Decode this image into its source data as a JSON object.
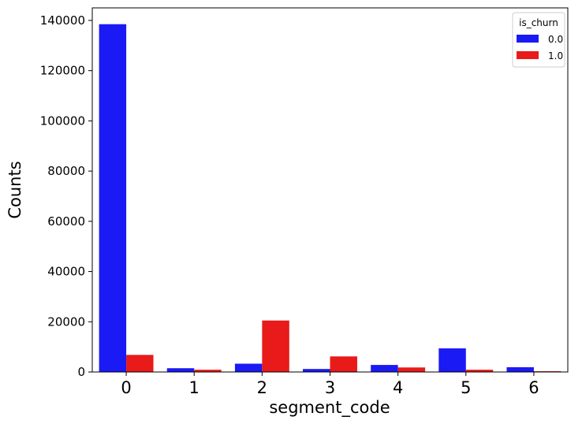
{
  "chart_data": {
    "type": "bar",
    "categories": [
      "0",
      "1",
      "2",
      "3",
      "4",
      "5",
      "6"
    ],
    "series": [
      {
        "name": "0.0",
        "color": "#1a1af5",
        "values": [
          138500,
          1500,
          3300,
          1200,
          2800,
          9400,
          1900
        ]
      },
      {
        "name": "1.0",
        "color": "#e81a1a",
        "values": [
          6800,
          900,
          20500,
          6200,
          1800,
          900,
          300
        ]
      }
    ],
    "xlabel": "segment_code",
    "ylabel": "Counts",
    "ylim": [
      0,
      145000
    ],
    "yticks": [
      "0",
      "20000",
      "40000",
      "60000",
      "80000",
      "100000",
      "120000",
      "140000"
    ],
    "legend": {
      "title": "is_churn",
      "position": "top-right"
    },
    "grid": false
  }
}
